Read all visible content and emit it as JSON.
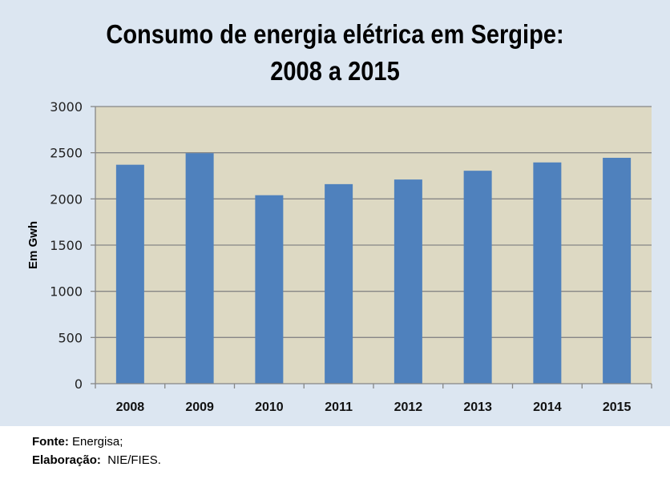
{
  "chart_data": {
    "type": "bar",
    "title_line1": "Consumo de energia elétrica em Sergipe:",
    "title_line2": "2008 a 2015",
    "xlabel": "",
    "ylabel": "Em Gwh",
    "categories": [
      "2008",
      "2009",
      "2010",
      "2011",
      "2012",
      "2013",
      "2014",
      "2015"
    ],
    "values": [
      2370,
      2495,
      2040,
      2160,
      2210,
      2305,
      2395,
      2445
    ],
    "ylim": [
      0,
      3000
    ],
    "yticks": [
      "0",
      "500",
      "1000",
      "1500",
      "2000",
      "2500",
      "3000"
    ],
    "grid": true,
    "legend": "none",
    "colors": {
      "bar": "#4f81bd",
      "plot_background": "#ddd9c3",
      "chart_background": "#dce6f1",
      "gridline": "#868686"
    }
  },
  "footer": {
    "source_label": "Fonte:",
    "source_value": "Energisa;",
    "credit_label": "Elaboração:",
    "credit_value": "NIE/FIES."
  }
}
